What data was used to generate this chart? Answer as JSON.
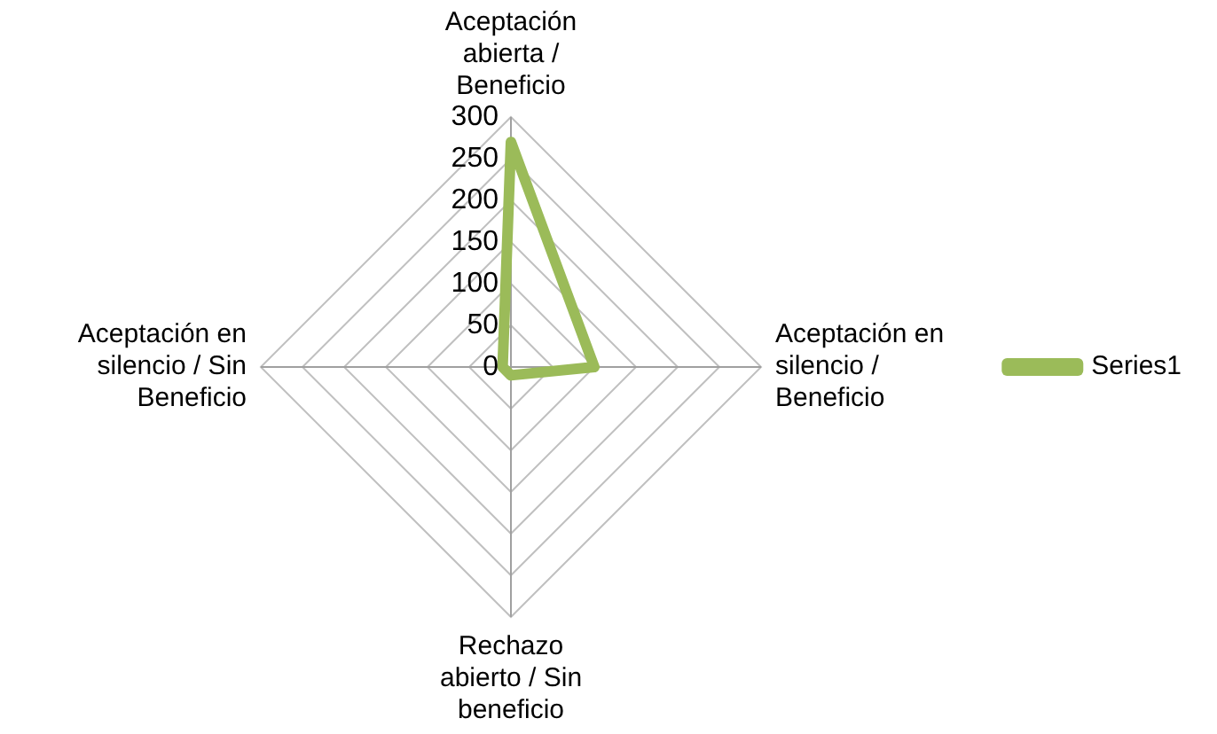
{
  "chart_data": {
    "type": "radar",
    "categories": [
      "Aceptación abierta / Beneficio",
      "Aceptación en silencio / Beneficio",
      "Rechazo abierto / Sin beneficio",
      "Aceptación en silencio / Sin Beneficio"
    ],
    "series": [
      {
        "name": "Series1",
        "color": "#9bbb59",
        "values": [
          270,
          100,
          10,
          10
        ]
      }
    ],
    "ylim": [
      0,
      300
    ],
    "yticks": [
      0,
      50,
      100,
      150,
      200,
      250,
      300
    ],
    "grid": true,
    "legend": "right",
    "marker": "none"
  }
}
